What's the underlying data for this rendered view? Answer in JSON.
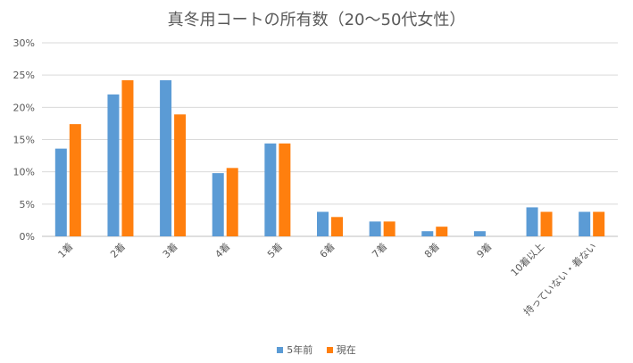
{
  "chart_data": {
    "type": "bar",
    "title": "真冬用コートの所有数（20〜50代女性）",
    "categories": [
      "1着",
      "2着",
      "3着",
      "4着",
      "5着",
      "6着",
      "7着",
      "8着",
      "9着",
      "10着以上",
      "持っていない・着ない"
    ],
    "series": [
      {
        "name": "5年前",
        "color": "#5b9bd5",
        "values": [
          13.6,
          22.0,
          24.2,
          9.8,
          14.4,
          3.8,
          2.3,
          0.8,
          0.8,
          4.5,
          3.8
        ]
      },
      {
        "name": "現在",
        "color": "#ff7f0e",
        "values": [
          17.4,
          24.2,
          18.9,
          10.6,
          14.4,
          3.0,
          2.3,
          1.5,
          0.0,
          3.8,
          3.8
        ]
      }
    ],
    "ylim": [
      0,
      30
    ],
    "yticks": [
      "0%",
      "5%",
      "10%",
      "15%",
      "20%",
      "25%",
      "30%"
    ],
    "grid": true,
    "legend_position": "bottom"
  }
}
